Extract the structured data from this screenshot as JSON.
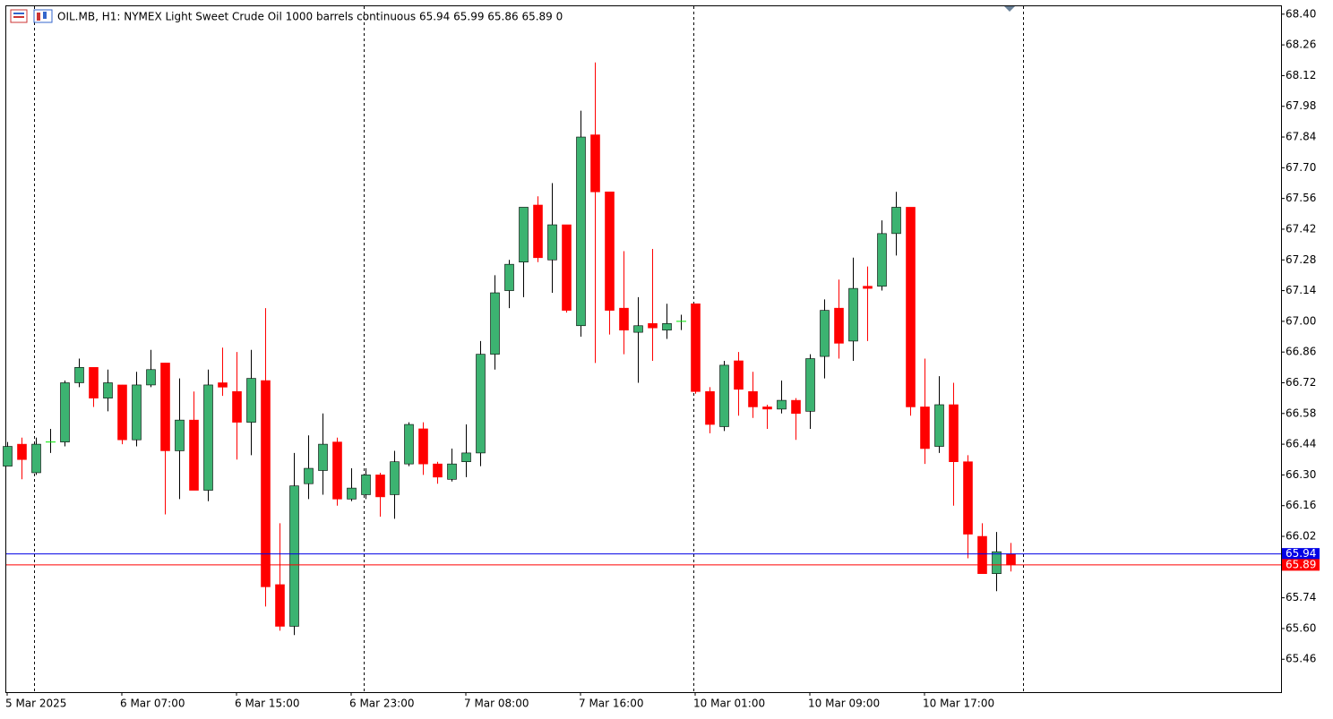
{
  "chart_data": {
    "type": "candlestick",
    "title": "OIL.MB, H1:  NYMEX Light Sweet Crude Oil 1000 barrels continuous  65.94 65.99 65.86 65.89  0",
    "categories": [
      "5 Mar 2025",
      null,
      null,
      null,
      null,
      null,
      null,
      null,
      "6 Mar 07:00",
      null,
      null,
      null,
      null,
      null,
      null,
      null,
      "6 Mar 15:00",
      null,
      null,
      null,
      null,
      null,
      null,
      null,
      "6 Mar 23:00",
      null,
      null,
      null,
      null,
      null,
      null,
      null,
      "7 Mar 08:00",
      null,
      null,
      null,
      null,
      null,
      null,
      null,
      "7 Mar 16:00",
      null,
      null,
      null,
      null,
      null,
      null,
      null,
      "10 Mar 01:00",
      null,
      null,
      null,
      null,
      null,
      null,
      null,
      "10 Mar 09:00",
      null,
      null,
      null,
      null,
      null,
      null,
      null,
      "10 Mar 17:00",
      null,
      null,
      null,
      null,
      null,
      null
    ],
    "open": [
      66.34,
      66.44,
      66.31,
      66.45,
      66.45,
      66.72,
      66.79,
      66.65,
      66.71,
      66.46,
      66.71,
      66.81,
      66.41,
      66.55,
      66.23,
      66.72,
      66.68,
      66.54,
      66.73,
      65.8,
      65.61,
      66.26,
      66.32,
      66.45,
      66.19,
      66.21,
      66.3,
      66.21,
      66.35,
      66.51,
      66.35,
      66.28,
      66.36,
      66.4,
      66.85,
      67.14,
      67.27,
      67.53,
      67.28,
      67.44,
      66.98,
      67.85,
      67.59,
      67.06,
      66.95,
      66.99,
      66.96,
      67.0,
      67.08,
      66.68,
      66.52,
      66.82,
      66.68,
      66.61,
      66.6,
      66.64,
      66.59,
      66.84,
      67.06,
      66.91,
      67.16,
      67.16,
      67.4,
      67.52,
      66.61,
      66.43,
      66.62,
      66.36,
      66.02,
      65.85,
      65.94
    ],
    "high": [
      66.45,
      66.47,
      66.47,
      66.51,
      66.73,
      66.83,
      66.79,
      66.78,
      66.71,
      66.77,
      66.87,
      66.81,
      66.74,
      66.68,
      66.78,
      66.88,
      66.86,
      66.87,
      67.06,
      66.08,
      66.4,
      66.48,
      66.58,
      66.47,
      66.33,
      66.33,
      66.31,
      66.41,
      66.54,
      66.54,
      66.36,
      66.42,
      66.53,
      66.91,
      67.21,
      67.28,
      67.52,
      67.57,
      67.63,
      67.44,
      67.96,
      68.18,
      67.59,
      67.32,
      67.11,
      67.33,
      67.08,
      67.03,
      67.08,
      66.7,
      66.82,
      66.86,
      66.77,
      66.62,
      66.73,
      66.65,
      66.85,
      67.1,
      67.19,
      67.29,
      67.25,
      67.46,
      67.59,
      67.52,
      66.83,
      66.75,
      66.72,
      66.39,
      66.08,
      66.04,
      65.99
    ],
    "low": [
      66.34,
      66.28,
      66.3,
      66.4,
      66.43,
      66.7,
      66.61,
      66.59,
      66.44,
      66.43,
      66.7,
      66.12,
      66.19,
      66.23,
      66.18,
      66.66,
      66.37,
      66.39,
      65.7,
      65.59,
      65.57,
      66.19,
      66.21,
      66.16,
      66.18,
      66.19,
      66.11,
      66.1,
      66.34,
      66.3,
      66.26,
      66.27,
      66.29,
      66.34,
      66.78,
      67.06,
      67.11,
      67.27,
      67.13,
      67.04,
      66.93,
      66.81,
      66.94,
      66.85,
      66.72,
      66.82,
      66.92,
      66.96,
      66.67,
      66.49,
      66.5,
      66.57,
      66.56,
      66.51,
      66.58,
      66.46,
      66.51,
      66.74,
      66.83,
      66.82,
      66.91,
      67.14,
      67.3,
      66.57,
      66.35,
      66.4,
      66.16,
      65.92,
      65.85,
      65.77,
      65.86
    ],
    "close": [
      66.43,
      66.37,
      66.44,
      66.45,
      66.72,
      66.79,
      66.65,
      66.72,
      66.46,
      66.71,
      66.78,
      66.41,
      66.55,
      66.23,
      66.71,
      66.7,
      66.54,
      66.74,
      65.79,
      65.61,
      66.25,
      66.33,
      66.44,
      66.19,
      66.24,
      66.3,
      66.2,
      66.36,
      66.53,
      66.35,
      66.29,
      66.35,
      66.4,
      66.85,
      67.13,
      67.26,
      67.52,
      67.29,
      67.44,
      67.05,
      67.84,
      67.59,
      67.05,
      66.96,
      66.98,
      66.97,
      66.99,
      67.0,
      66.68,
      66.53,
      66.8,
      66.69,
      66.61,
      66.6,
      66.64,
      66.58,
      66.83,
      67.05,
      66.9,
      67.15,
      67.15,
      67.4,
      67.52,
      66.61,
      66.42,
      66.62,
      66.36,
      66.03,
      65.85,
      65.95,
      65.89
    ],
    "up_color": "#3cb371",
    "down_color": "#ff0000",
    "ask": {
      "value": 65.94,
      "label": "65.94",
      "color": "#0000e6"
    },
    "bid": {
      "value": 65.89,
      "label": "65.89",
      "color": "#ff0000"
    },
    "ylim": [
      65.31,
      68.44
    ],
    "yticks": [
      {
        "value": 68.4,
        "label": "68.40"
      },
      {
        "value": 68.26,
        "label": "68.26"
      },
      {
        "value": 68.12,
        "label": "68.12"
      },
      {
        "value": 67.98,
        "label": "67.98"
      },
      {
        "value": 67.84,
        "label": "67.84"
      },
      {
        "value": 67.7,
        "label": "67.70"
      },
      {
        "value": 67.56,
        "label": "67.56"
      },
      {
        "value": 67.42,
        "label": "67.42"
      },
      {
        "value": 67.28,
        "label": "67.28"
      },
      {
        "value": 67.14,
        "label": "67.14"
      },
      {
        "value": 67.0,
        "label": "67.00"
      },
      {
        "value": 66.86,
        "label": "66.86"
      },
      {
        "value": 66.72,
        "label": "66.72"
      },
      {
        "value": 66.58,
        "label": "66.58"
      },
      {
        "value": 66.44,
        "label": "66.44"
      },
      {
        "value": 66.3,
        "label": "66.30"
      },
      {
        "value": 66.16,
        "label": "66.16"
      },
      {
        "value": 66.02,
        "label": "66.02"
      },
      {
        "value": 65.74,
        "label": "65.74"
      },
      {
        "value": 65.6,
        "label": "65.60"
      },
      {
        "value": 65.46,
        "label": "65.46"
      }
    ]
  }
}
